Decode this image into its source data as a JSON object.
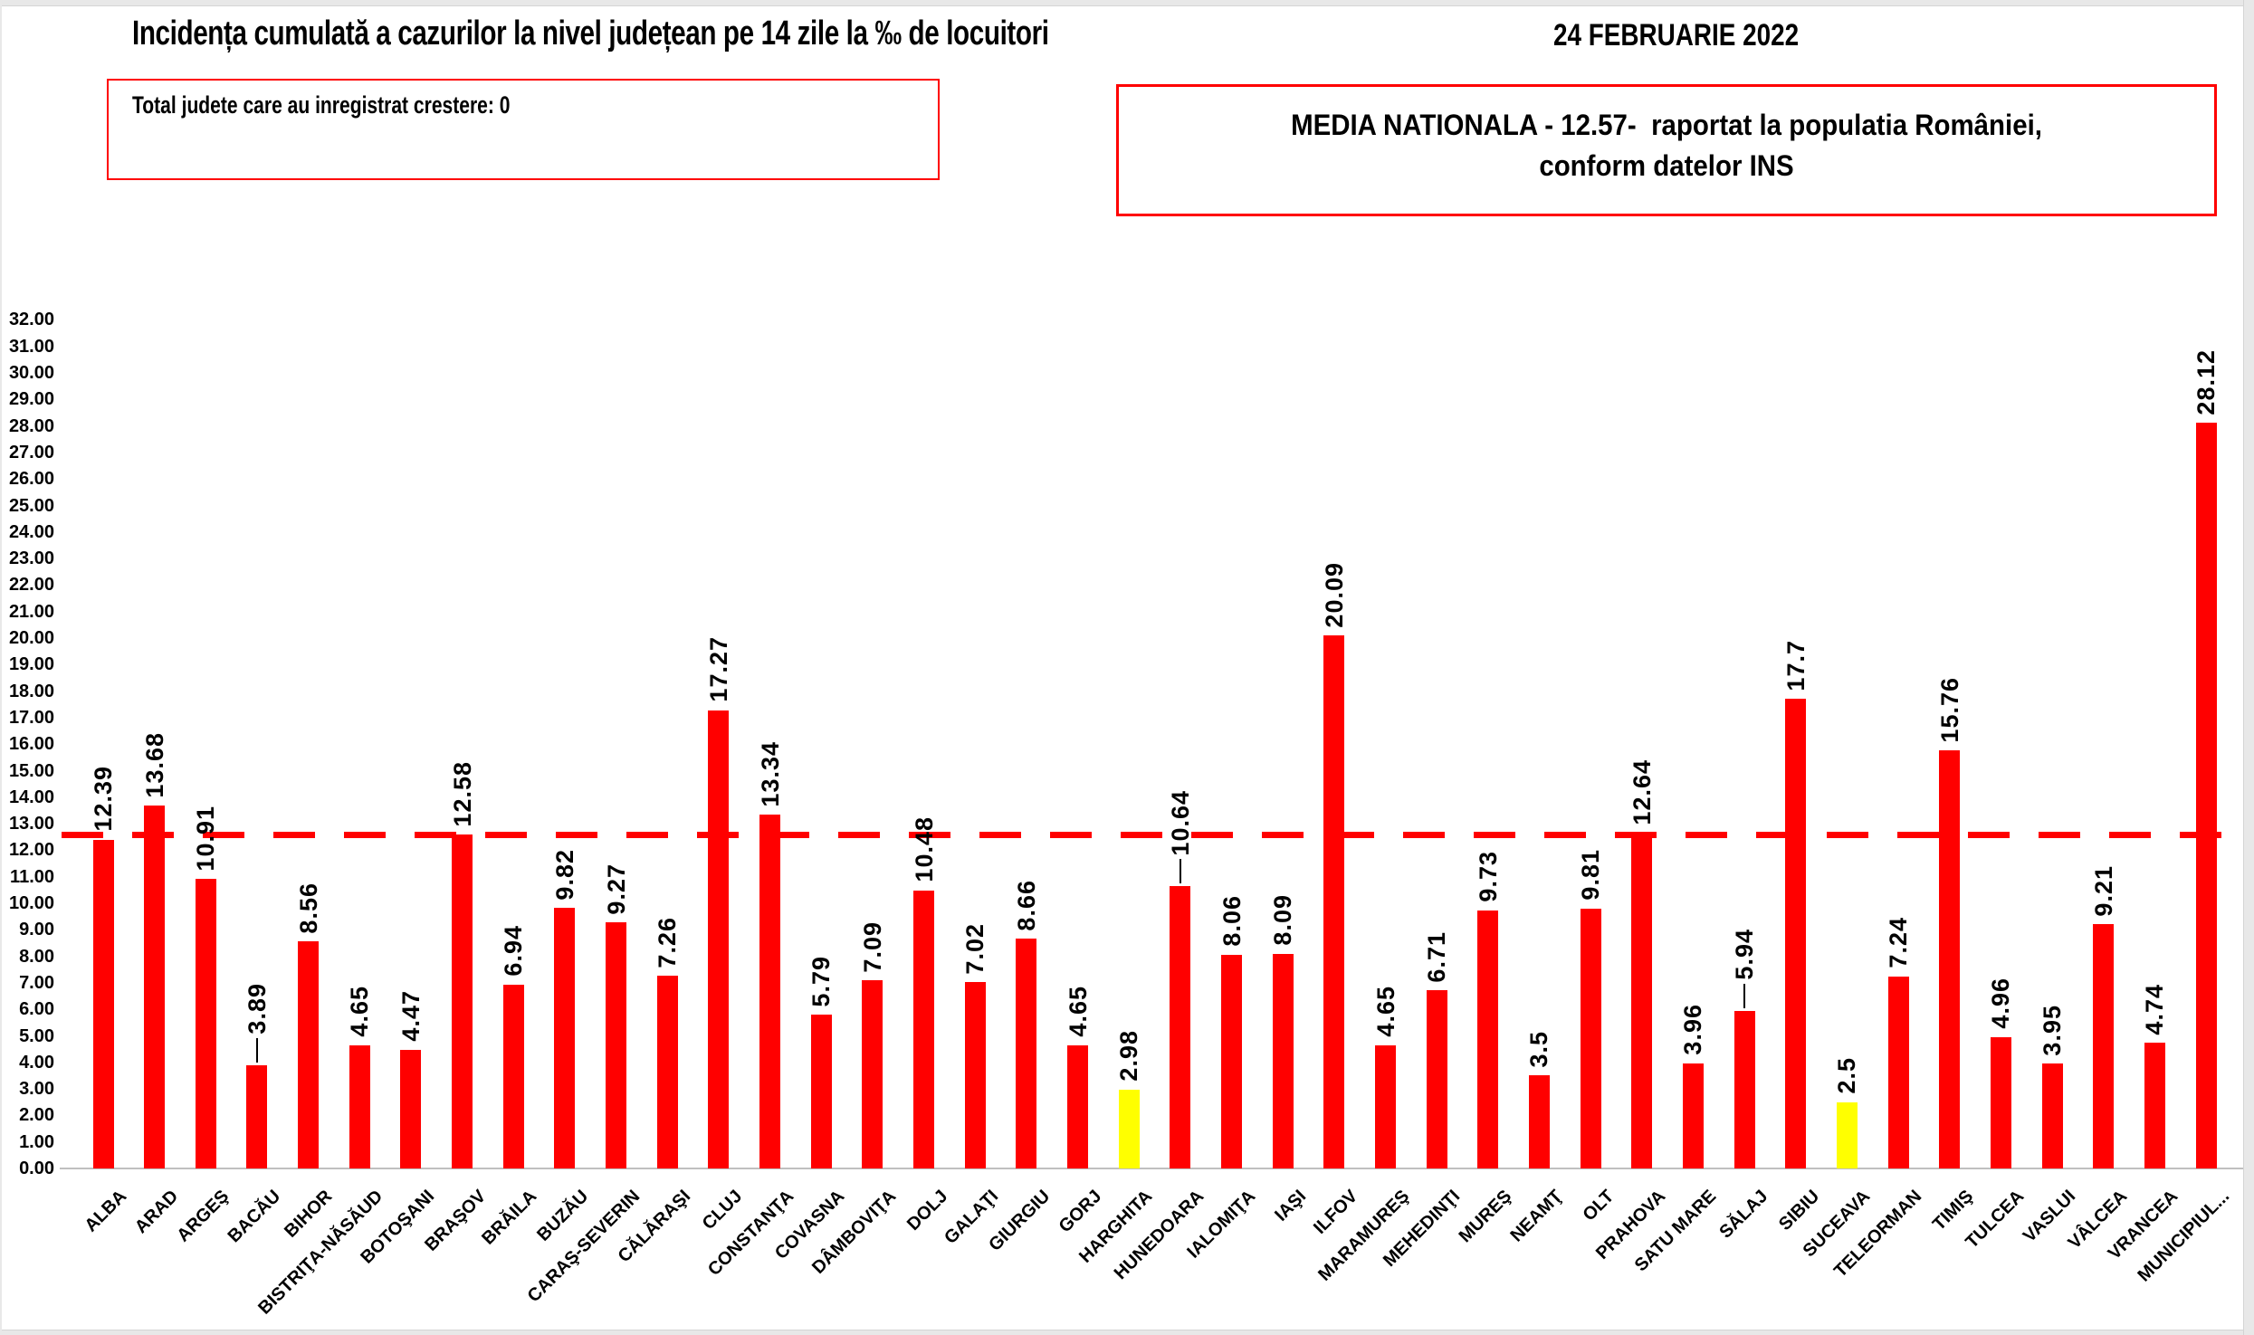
{
  "page": {
    "title": "Incidența cumulată a cazurilor la nivel județean pe 14 zile la ‰ de locuitori",
    "date": "24 FEBRUARIE 2022",
    "growth_box": "Total judete care au inregistrat crestere: 0",
    "media_line1": "MEDIA NATIONALA - 12.57-  raportat la populatia României,",
    "media_line2": "conform datelor INS"
  },
  "colors": {
    "bar": "#FF0000",
    "bar_highlight": "#FFFF00",
    "average_line": "#FF0000",
    "box_border": "#FF0000",
    "axis_line": "#BFBFBF",
    "text": "#000000"
  },
  "chart_data": {
    "type": "bar",
    "title": "Incidența cumulată a cazurilor la nivel județean pe 14 zile la ‰ de locuitori",
    "xlabel": "",
    "ylabel": "",
    "ylim": [
      0,
      32
    ],
    "ytick_step": 1,
    "grid": false,
    "legend": "none",
    "value_labels_rotation_deg": 90,
    "category_labels_rotation_deg": 45,
    "national_average": 12.57,
    "categories": [
      "ALBA",
      "ARAD",
      "ARGEŞ",
      "BACĂU",
      "BIHOR",
      "BISTRIŢA-NĂSĂUD",
      "BOTOŞANI",
      "BRAŞOV",
      "BRĂILA",
      "BUZĂU",
      "CARAŞ-SEVERIN",
      "CĂLĂRAŞI",
      "CLUJ",
      "CONSTANŢA",
      "COVASNA",
      "DÂMBOVIŢA",
      "DOLJ",
      "GALAŢI",
      "GIURGIU",
      "GORJ",
      "HARGHITA",
      "HUNEDOARA",
      "IALOMIŢA",
      "IAŞI",
      "ILFOV",
      "MARAMUREŞ",
      "MEHEDINŢI",
      "MUREŞ",
      "NEAMŢ",
      "OLT",
      "PRAHOVA",
      "SATU MARE",
      "SĂLAJ",
      "SIBIU",
      "SUCEAVA",
      "TELEORMAN",
      "TIMIŞ",
      "TULCEA",
      "VASLUI",
      "VÂLCEA",
      "VRANCEA",
      "MUNICIPIUL..."
    ],
    "values": [
      12.39,
      13.68,
      10.91,
      3.89,
      8.56,
      4.65,
      4.47,
      12.58,
      6.94,
      9.82,
      9.27,
      7.26,
      17.27,
      13.34,
      5.79,
      7.09,
      10.48,
      7.02,
      8.66,
      4.65,
      2.98,
      10.64,
      8.06,
      8.09,
      20.09,
      4.65,
      6.71,
      9.73,
      3.5,
      9.81,
      12.64,
      3.96,
      5.94,
      17.7,
      2.5,
      7.24,
      15.76,
      4.96,
      3.95,
      9.21,
      4.74,
      28.12
    ],
    "highlight_indices": [
      20,
      34
    ],
    "leader_line_indices": [
      3,
      21,
      32
    ]
  }
}
